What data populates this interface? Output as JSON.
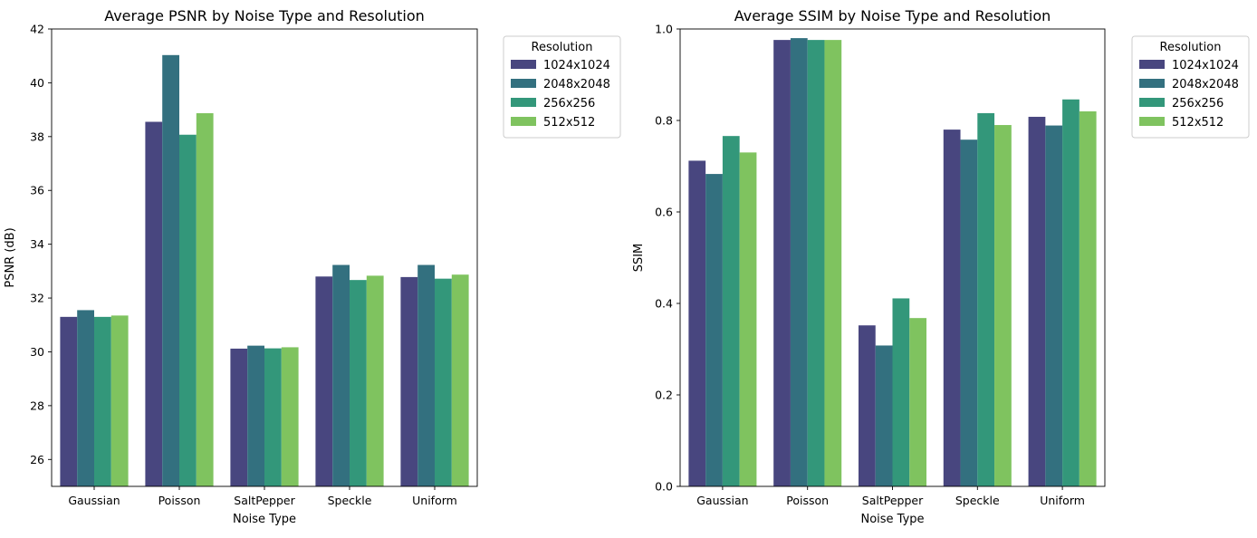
{
  "chart_data": [
    {
      "type": "bar",
      "title": "Average PSNR by Noise Type and Resolution",
      "xlabel": "Noise Type",
      "ylabel": "PSNR (dB)",
      "ylim": [
        25,
        42
      ],
      "yticks": [
        26,
        28,
        30,
        32,
        34,
        36,
        38,
        40,
        42
      ],
      "categories": [
        "Gaussian",
        "Poisson",
        "SaltPepper",
        "Speckle",
        "Uniform"
      ],
      "legend_title": "Resolution",
      "legend_position": "outside upper right",
      "grid": false,
      "series": [
        {
          "name": "1024x1024",
          "color": "#48467f",
          "values": [
            31.3,
            38.55,
            30.12,
            32.8,
            32.78
          ]
        },
        {
          "name": "2048x2048",
          "color": "#33707f",
          "values": [
            31.55,
            41.03,
            30.23,
            33.23,
            33.23
          ]
        },
        {
          "name": "256x256",
          "color": "#33977a",
          "values": [
            31.3,
            38.07,
            30.13,
            32.67,
            32.72
          ]
        },
        {
          "name": "512x512",
          "color": "#7fc35f",
          "values": [
            31.35,
            38.87,
            30.17,
            32.83,
            32.87
          ]
        }
      ]
    },
    {
      "type": "bar",
      "title": "Average SSIM by Noise Type and Resolution",
      "xlabel": "Noise Type",
      "ylabel": "SSIM",
      "ylim": [
        0,
        1.0
      ],
      "yticks": [
        0.0,
        0.2,
        0.4,
        0.6,
        0.8,
        1.0
      ],
      "ytick_labels": [
        "0.0",
        "0.2",
        "0.4",
        "0.6",
        "0.8",
        "1.0"
      ],
      "categories": [
        "Gaussian",
        "Poisson",
        "SaltPepper",
        "Speckle",
        "Uniform"
      ],
      "legend_title": "Resolution",
      "legend_position": "outside upper right",
      "grid": false,
      "series": [
        {
          "name": "1024x1024",
          "color": "#48467f",
          "values": [
            0.712,
            0.976,
            0.352,
            0.78,
            0.808
          ]
        },
        {
          "name": "2048x2048",
          "color": "#33707f",
          "values": [
            0.683,
            0.98,
            0.308,
            0.758,
            0.789
          ]
        },
        {
          "name": "256x256",
          "color": "#33977a",
          "values": [
            0.766,
            0.976,
            0.411,
            0.816,
            0.846
          ]
        },
        {
          "name": "512x512",
          "color": "#7fc35f",
          "values": [
            0.73,
            0.976,
            0.368,
            0.79,
            0.82
          ]
        }
      ]
    }
  ]
}
